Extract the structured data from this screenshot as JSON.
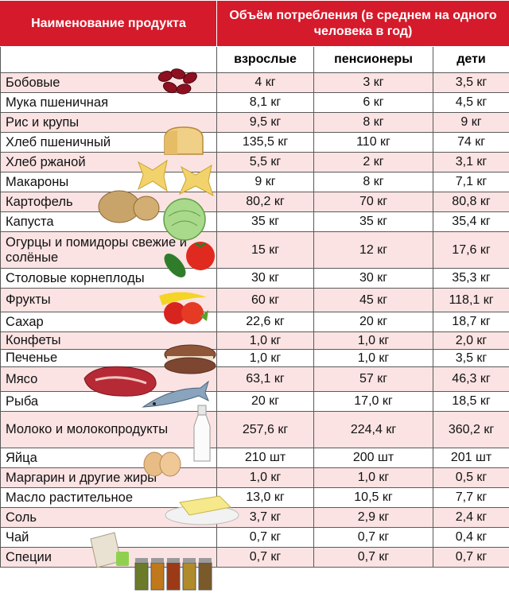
{
  "header": {
    "product_col": "Наименование продукта",
    "consumption_col": "Объём потребления (в среднем на одного человека в год)",
    "adults": "взрослые",
    "pensioners": "пенсионеры",
    "children": "дети"
  },
  "rows": [
    {
      "name": "Бобовые",
      "adults": "4 кг",
      "pensioners": "3 кг",
      "children": "3,5 кг"
    },
    {
      "name": "Мука пшеничная",
      "adults": "8,1 кг",
      "pensioners": "6 кг",
      "children": "4,5 кг"
    },
    {
      "name": "Рис и крупы",
      "adults": "9,5 кг",
      "pensioners": "8 кг",
      "children": "9 кг"
    },
    {
      "name": "Хлеб пшеничный",
      "adults": "135,5 кг",
      "pensioners": "110 кг",
      "children": "74 кг"
    },
    {
      "name": "Хлеб ржаной",
      "adults": "5,5 кг",
      "pensioners": "2 кг",
      "children": "3,1 кг"
    },
    {
      "name": "Макароны",
      "adults": "9 кг",
      "pensioners": "8 кг",
      "children": "7,1 кг"
    },
    {
      "name": "Картофель",
      "adults": "80,2 кг",
      "pensioners": "70 кг",
      "children": "80,8 кг"
    },
    {
      "name": "Капуста",
      "adults": "35 кг",
      "pensioners": "35 кг",
      "children": "35,4 кг"
    },
    {
      "name": "Огурцы и помидоры свежие и солёные",
      "adults": "15 кг",
      "pensioners": "12 кг",
      "children": "17,6 кг"
    },
    {
      "name": "Столовые корнеплоды",
      "adults": "30 кг",
      "pensioners": "30 кг",
      "children": "35,3 кг"
    },
    {
      "name": "Фрукты",
      "adults": "60 кг",
      "pensioners": "45 кг",
      "children": "118,1 кг"
    },
    {
      "name": "Сахар",
      "adults": "22,6 кг",
      "pensioners": "20 кг",
      "children": "18,7 кг"
    },
    {
      "name": "Конфеты",
      "adults": "1,0 кг",
      "pensioners": "1,0 кг",
      "children": "2,0 кг"
    },
    {
      "name": "Печенье",
      "adults": "1,0 кг",
      "pensioners": "1,0 кг",
      "children": "3,5 кг"
    },
    {
      "name": "Мясо",
      "adults": "63,1 кг",
      "pensioners": "57 кг",
      "children": "46,3 кг"
    },
    {
      "name": "Рыба",
      "adults": "20 кг",
      "pensioners": "17,0 кг",
      "children": "18,5 кг"
    },
    {
      "name": "Молоко и молокопродукты",
      "adults": "257,6 кг",
      "pensioners": "224,4 кг",
      "children": "360,2 кг"
    },
    {
      "name": "Яйца",
      "adults": "210 шт",
      "pensioners": "200 шт",
      "children": "201 шт"
    },
    {
      "name": "Маргарин и другие жиры",
      "adults": "1,0 кг",
      "pensioners": "1,0 кг",
      "children": "0,5 кг"
    },
    {
      "name": "Масло растительное",
      "adults": "13,0 кг",
      "pensioners": "10,5 кг",
      "children": "7,7 кг"
    },
    {
      "name": "Соль",
      "adults": "3,7 кг",
      "pensioners": "2,9 кг",
      "children": "2,4 кг"
    },
    {
      "name": "Чай",
      "adults": "0,7 кг",
      "pensioners": "0,7 кг",
      "children": "0,4 кг"
    },
    {
      "name": "Специи",
      "adults": "0,7 кг",
      "pensioners": "0,7 кг",
      "children": "0,7 кг"
    }
  ]
}
